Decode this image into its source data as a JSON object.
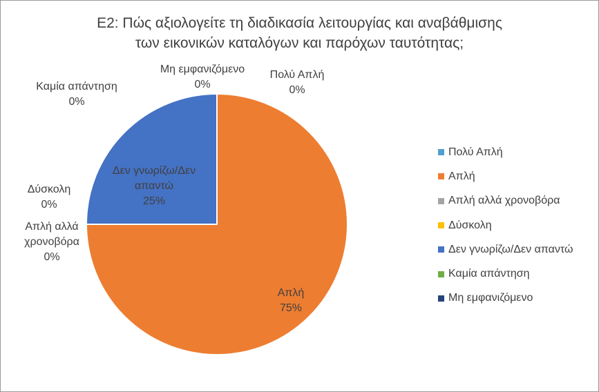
{
  "colors": {
    "frame_bg": "#ffffff",
    "text": "#404040"
  },
  "chart_data": {
    "type": "pie",
    "title_lines": [
      "Ε2: Πώς αξιολογείτε τη διαδικασία λειτουργίας και αναβάθμισης",
      "των εικονικών καταλόγων και παρόχων ταυτότητας;"
    ],
    "legend_position": "right",
    "slices": [
      {
        "label": "Πολύ Απλή",
        "label_lines": [
          "Πολύ Απλή"
        ],
        "value": 0,
        "percent_label": "0%",
        "color": "#4f9fcf"
      },
      {
        "label": "Απλή",
        "label_lines": [
          "Απλή"
        ],
        "value": 75,
        "percent_label": "75%",
        "color": "#ed7d31"
      },
      {
        "label": "Απλή αλλά χρονοβόρα",
        "label_lines": [
          "Απλή αλλά",
          "χρονοβόρα"
        ],
        "value": 0,
        "percent_label": "0%",
        "color": "#a5a5a5"
      },
      {
        "label": "Δύσκολη",
        "label_lines": [
          "Δύσκολη"
        ],
        "value": 0,
        "percent_label": "0%",
        "color": "#ffc000"
      },
      {
        "label": "Δεν γνωρίζω/Δεν απαντώ",
        "label_lines": [
          "Δεν γνωρίζω/Δεν",
          "απαντώ"
        ],
        "value": 25,
        "percent_label": "25%",
        "color": "#4472c4"
      },
      {
        "label": "Καμία απάντηση",
        "label_lines": [
          "Καμία απάντηση"
        ],
        "value": 0,
        "percent_label": "0%",
        "color": "#70ad47"
      },
      {
        "label": "Μη εμφανιζόμενο",
        "label_lines": [
          "Μη εμφανιζόμενο"
        ],
        "value": 0,
        "percent_label": "0%",
        "color": "#264478"
      }
    ]
  }
}
